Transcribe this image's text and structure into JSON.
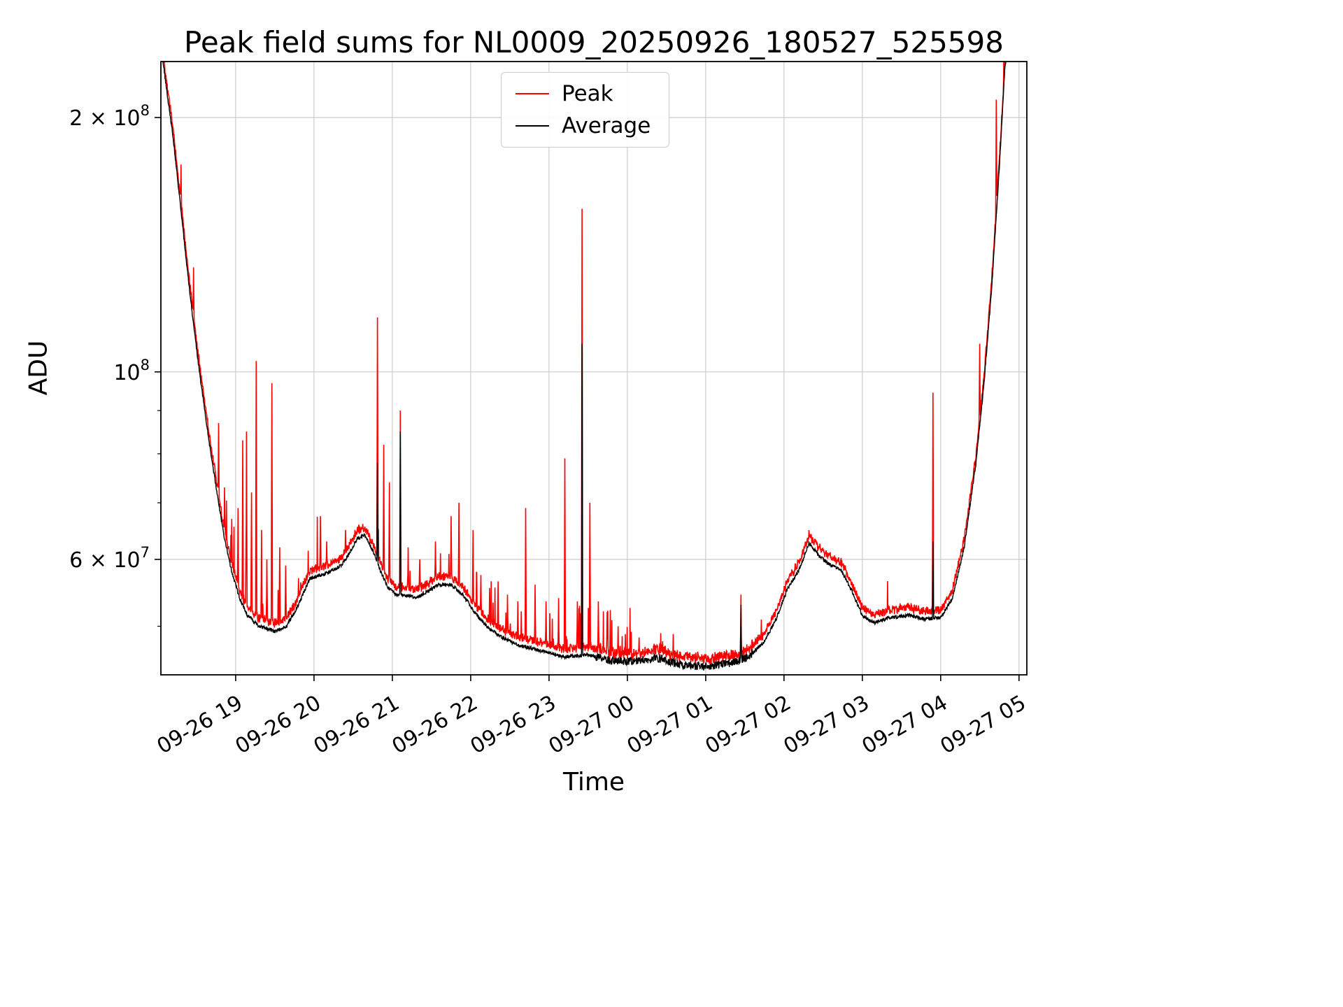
{
  "chart_data": {
    "type": "line",
    "title": "Peak field sums for NL0009_20250926_180527_525598",
    "xlabel": "Time",
    "ylabel": "ADU",
    "yscale": "log",
    "ylim": [
      43800000.0,
      233000000.0
    ],
    "xlim_hours": [
      0.045,
      11.1
    ],
    "x_unit": "hours after first x gridline minus 1 (ticks are hourly)",
    "grid": true,
    "grid_color": "#cccccc",
    "background": "#ffffff",
    "legend_position": "upper center",
    "series": [
      {
        "name": "Peak",
        "color": "#ff0000"
      },
      {
        "name": "Average",
        "color": "#000000"
      }
    ],
    "x_ticks": [
      {
        "t": 1,
        "label": "09-26 19"
      },
      {
        "t": 2,
        "label": "09-26 20"
      },
      {
        "t": 3,
        "label": "09-26 21"
      },
      {
        "t": 4,
        "label": "09-26 22"
      },
      {
        "t": 5,
        "label": "09-26 23"
      },
      {
        "t": 6,
        "label": "09-27 00"
      },
      {
        "t": 7,
        "label": "09-27 01"
      },
      {
        "t": 8,
        "label": "09-27 02"
      },
      {
        "t": 9,
        "label": "09-27 03"
      },
      {
        "t": 10,
        "label": "09-27 04"
      },
      {
        "t": 11,
        "label": "09-27 05"
      }
    ],
    "y_ticks": [
      {
        "value": 60000000.0,
        "mantissa": "6 × 10",
        "exponent": "7"
      },
      {
        "value": 100000000.0,
        "mantissa": "10",
        "exponent": "8"
      },
      {
        "value": 200000000.0,
        "mantissa": "2 × 10",
        "exponent": "8"
      }
    ],
    "y_minor_ticks": [
      50000000.0,
      70000000.0,
      80000000.0,
      90000000.0
    ],
    "average_keypoints": [
      [
        0.045,
        245000000.0
      ],
      [
        0.12,
        215000000.0
      ],
      [
        0.2,
        190000000.0
      ],
      [
        0.28,
        162000000.0
      ],
      [
        0.36,
        138000000.0
      ],
      [
        0.45,
        116000000.0
      ],
      [
        0.55,
        98000000.0
      ],
      [
        0.65,
        84000000.0
      ],
      [
        0.75,
        73000000.0
      ],
      [
        0.85,
        64000000.0
      ],
      [
        0.95,
        58000000.0
      ],
      [
        1.05,
        54000000.0
      ],
      [
        1.15,
        51500000.0
      ],
      [
        1.3,
        50000000.0
      ],
      [
        1.5,
        49300000.0
      ],
      [
        1.65,
        50000000.0
      ],
      [
        1.8,
        53000000.0
      ],
      [
        1.95,
        57000000.0
      ],
      [
        2.1,
        57500000.0
      ],
      [
        2.2,
        58000000.0
      ],
      [
        2.35,
        59000000.0
      ],
      [
        2.45,
        61000000.0
      ],
      [
        2.55,
        63500000.0
      ],
      [
        2.65,
        64000000.0
      ],
      [
        2.75,
        61500000.0
      ],
      [
        2.85,
        58000000.0
      ],
      [
        2.95,
        55500000.0
      ],
      [
        3.05,
        54500000.0
      ],
      [
        3.15,
        54500000.0
      ],
      [
        3.3,
        54000000.0
      ],
      [
        3.45,
        55000000.0
      ],
      [
        3.6,
        56000000.0
      ],
      [
        3.75,
        56000000.0
      ],
      [
        3.9,
        54500000.0
      ],
      [
        4.05,
        52000000.0
      ],
      [
        4.2,
        50000000.0
      ],
      [
        4.4,
        48500000.0
      ],
      [
        4.6,
        47500000.0
      ],
      [
        4.8,
        47000000.0
      ],
      [
        5.0,
        46500000.0
      ],
      [
        5.2,
        46000000.0
      ],
      [
        5.5,
        46200000.0
      ],
      [
        5.8,
        45500000.0
      ],
      [
        6.1,
        45500000.0
      ],
      [
        6.4,
        45800000.0
      ],
      [
        6.7,
        45000000.0
      ],
      [
        7.0,
        44800000.0
      ],
      [
        7.3,
        45200000.0
      ],
      [
        7.55,
        46000000.0
      ],
      [
        7.75,
        48000000.0
      ],
      [
        7.9,
        51000000.0
      ],
      [
        8.05,
        55500000.0
      ],
      [
        8.2,
        58500000.0
      ],
      [
        8.32,
        62800000.0
      ],
      [
        8.45,
        60500000.0
      ],
      [
        8.6,
        59000000.0
      ],
      [
        8.72,
        58500000.0
      ],
      [
        8.85,
        55500000.0
      ],
      [
        9.0,
        51500000.0
      ],
      [
        9.15,
        50500000.0
      ],
      [
        9.35,
        51200000.0
      ],
      [
        9.6,
        51500000.0
      ],
      [
        9.8,
        51000000.0
      ],
      [
        10.0,
        51200000.0
      ],
      [
        10.15,
        54000000.0
      ],
      [
        10.3,
        62000000.0
      ],
      [
        10.45,
        78000000.0
      ],
      [
        10.55,
        96000000.0
      ],
      [
        10.65,
        125000000.0
      ],
      [
        10.75,
        175000000.0
      ],
      [
        10.82,
        230000000.0
      ],
      [
        10.9,
        255000000.0
      ],
      [
        11.1,
        260000000.0
      ]
    ],
    "spikes": [
      [
        0.3,
        176000000.0
      ],
      [
        0.46,
        133000000.0
      ],
      [
        0.78,
        87000000.0
      ],
      [
        0.86,
        73000000.0
      ],
      [
        0.95,
        67000000.0
      ],
      [
        1.03,
        69000000.0
      ],
      [
        1.09,
        83000000.0
      ],
      [
        1.14,
        85000000.0
      ],
      [
        1.2,
        72000000.0
      ],
      [
        1.26,
        103000000.0
      ],
      [
        1.33,
        65000000.0
      ],
      [
        1.4,
        60000000.0
      ],
      [
        1.46,
        97000000.0
      ],
      [
        1.56,
        62000000.0
      ],
      [
        1.64,
        59000000.0
      ],
      [
        1.8,
        57000000.0
      ],
      [
        2.08,
        67500000.0
      ],
      [
        2.16,
        63000000.0
      ],
      [
        2.4,
        65000000.0
      ],
      [
        2.81,
        116000000.0,
        78000000.0
      ],
      [
        2.89,
        82000000.0
      ],
      [
        2.96,
        74000000.0
      ],
      [
        3.1,
        90000000.0,
        85000000.0
      ],
      [
        3.2,
        62000000.0
      ],
      [
        3.35,
        60000000.0
      ],
      [
        3.55,
        63000000.0
      ],
      [
        3.75,
        67500000.0
      ],
      [
        3.85,
        70000000.0
      ],
      [
        4.03,
        65000000.0
      ],
      [
        4.13,
        57500000.0
      ],
      [
        4.24,
        55500000.0
      ],
      [
        4.35,
        56500000.0
      ],
      [
        4.47,
        54500000.0
      ],
      [
        4.6,
        53500000.0
      ],
      [
        4.7,
        69000000.0
      ],
      [
        4.82,
        56000000.0
      ],
      [
        4.96,
        53500000.0
      ],
      [
        5.12,
        54000000.0
      ],
      [
        5.2,
        79000000.0
      ],
      [
        5.36,
        53500000.0
      ],
      [
        5.42,
        156000000.0,
        108000000.0
      ],
      [
        5.52,
        70000000.0
      ],
      [
        5.63,
        53500000.0
      ],
      [
        5.74,
        52000000.0
      ],
      [
        5.88,
        50000000.0
      ],
      [
        6.15,
        48500000.0
      ],
      [
        6.45,
        48000000.0
      ],
      [
        7.45,
        54500000.0,
        53000000.0
      ],
      [
        9.9,
        94500000.0,
        63000000.0
      ],
      [
        10.5,
        108000000.0
      ],
      [
        10.71,
        210000000.0
      ]
    ],
    "noise": {
      "seed": 42,
      "sample_step": 0.004,
      "average_amp": 0.005,
      "average_amp_regions": [
        {
          "range": [
            5.6,
            7.6
          ],
          "amp": 0.011
        }
      ],
      "peak_base_offset": 0.012,
      "peak_small_amp": 0.02,
      "default_spike_prob": 0.008,
      "default_spike_amp": 0.08,
      "spike_regions": [
        {
          "range": [
            0.85,
            2.3
          ],
          "prob": 0.05,
          "amp": 0.16
        },
        {
          "range": [
            3.9,
            6.1
          ],
          "prob": 0.05,
          "amp": 0.14
        }
      ]
    }
  }
}
